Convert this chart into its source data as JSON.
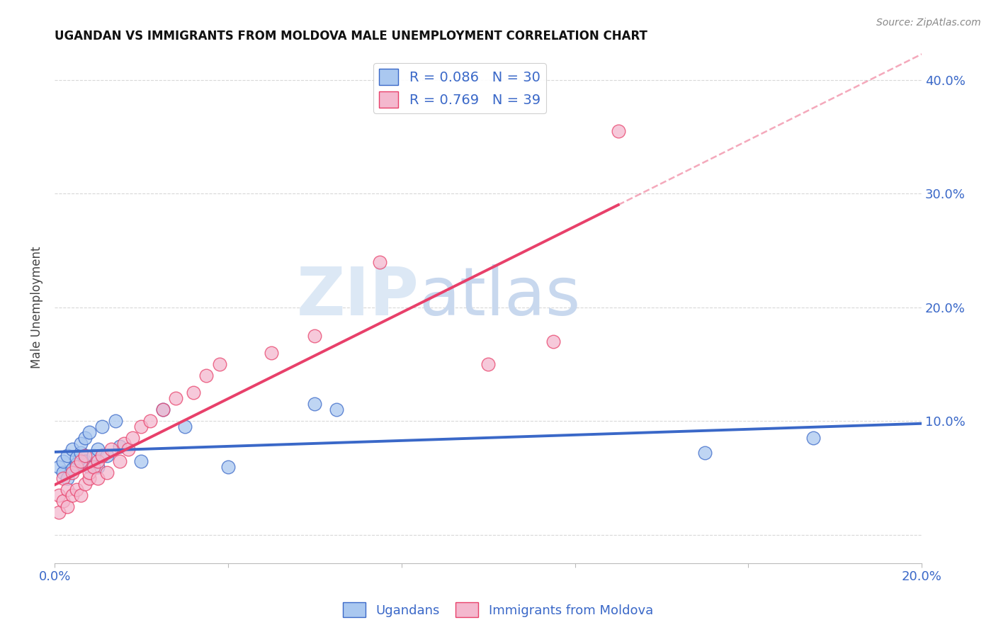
{
  "title": "UGANDAN VS IMMIGRANTS FROM MOLDOVA MALE UNEMPLOYMENT CORRELATION CHART",
  "source": "Source: ZipAtlas.com",
  "ylabel": "Male Unemployment",
  "xlim": [
    0.0,
    0.2
  ],
  "ylim": [
    -0.025,
    0.425
  ],
  "color_ugandan": "#aac8f0",
  "color_moldova": "#f4b8ce",
  "line_color_ugandan": "#3a68c8",
  "line_color_moldova": "#e8406a",
  "watermark_zip": "ZIP",
  "watermark_atlas": "atlas",
  "watermark_color_zip": "#dce8f5",
  "watermark_color_atlas": "#c8d8ee",
  "legend_label1": "Ugandans",
  "legend_label2": "Immigrants from Moldova",
  "background_color": "#ffffff",
  "grid_color": "#d8d8d8",
  "ugandan_x": [
    0.001,
    0.002,
    0.002,
    0.003,
    0.003,
    0.004,
    0.004,
    0.005,
    0.005,
    0.006,
    0.006,
    0.007,
    0.007,
    0.008,
    0.008,
    0.009,
    0.01,
    0.01,
    0.011,
    0.012,
    0.014,
    0.015,
    0.02,
    0.025,
    0.03,
    0.04,
    0.06,
    0.065,
    0.15,
    0.175
  ],
  "ugandan_y": [
    0.06,
    0.055,
    0.065,
    0.05,
    0.07,
    0.058,
    0.075,
    0.062,
    0.068,
    0.072,
    0.08,
    0.065,
    0.085,
    0.06,
    0.09,
    0.07,
    0.075,
    0.06,
    0.095,
    0.07,
    0.1,
    0.078,
    0.065,
    0.11,
    0.095,
    0.06,
    0.115,
    0.11,
    0.072,
    0.085
  ],
  "moldova_x": [
    0.001,
    0.001,
    0.002,
    0.002,
    0.003,
    0.003,
    0.004,
    0.004,
    0.005,
    0.005,
    0.006,
    0.006,
    0.007,
    0.007,
    0.008,
    0.008,
    0.009,
    0.01,
    0.01,
    0.011,
    0.012,
    0.013,
    0.015,
    0.016,
    0.017,
    0.018,
    0.02,
    0.022,
    0.025,
    0.028,
    0.032,
    0.035,
    0.038,
    0.05,
    0.06,
    0.075,
    0.1,
    0.115,
    0.13
  ],
  "moldova_y": [
    0.02,
    0.035,
    0.03,
    0.05,
    0.025,
    0.04,
    0.035,
    0.055,
    0.04,
    0.06,
    0.035,
    0.065,
    0.045,
    0.07,
    0.05,
    0.055,
    0.06,
    0.065,
    0.05,
    0.07,
    0.055,
    0.075,
    0.065,
    0.08,
    0.075,
    0.085,
    0.095,
    0.1,
    0.11,
    0.12,
    0.125,
    0.14,
    0.15,
    0.16,
    0.175,
    0.24,
    0.15,
    0.17,
    0.355
  ],
  "moldova_line_start_x": 0.0,
  "moldova_line_end_solid_x": 0.13,
  "moldova_line_end_dash_x": 0.2
}
